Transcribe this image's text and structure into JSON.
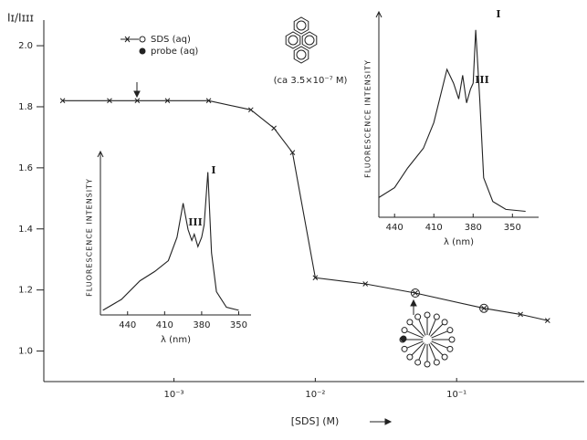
{
  "chart_data": [
    {
      "type": "line",
      "y_label": "Iɪ/Iɪɪɪ",
      "x_label": "[SDS] (M)",
      "log_x": true,
      "xlim": [
        0.00012,
        0.8
      ],
      "xticks": [
        {
          "value": 0.001,
          "label": "10⁻³"
        },
        {
          "value": 0.01,
          "label": "10⁻²"
        },
        {
          "value": 0.1,
          "label": "10⁻¹"
        }
      ],
      "ylim": [
        0.9,
        2.06
      ],
      "yticks": [
        {
          "value": 1,
          "label": "1.0"
        },
        1.2,
        1.4,
        1.6,
        1.8,
        {
          "value": 2,
          "label": "2.0"
        }
      ],
      "x": [
        0.000163,
        0.00035,
        0.00055,
        0.0009,
        0.00176,
        0.0035,
        0.0051,
        0.0069,
        0.01,
        0.0226,
        0.051,
        0.156,
        0.283,
        0.44
      ],
      "values": [
        1.82,
        1.82,
        1.82,
        1.82,
        1.82,
        1.79,
        1.73,
        1.65,
        1.24,
        1.22,
        1.19,
        1.14,
        1.12,
        1.1
      ],
      "circled": [
        false,
        false,
        false,
        false,
        false,
        false,
        false,
        false,
        false,
        false,
        true,
        true,
        false,
        false
      ],
      "color": "#222",
      "annotations": [
        "SDS (aq)",
        "probe (aq)",
        "(ca 3.5×10⁻⁷ M)"
      ]
    },
    {
      "type": "line",
      "y_label": "FLUORESCENCE INTENSITY",
      "x_label": "λ (nm)",
      "xlim": [
        462,
        340
      ],
      "xticks": [
        440,
        410,
        380,
        350
      ],
      "ylim": [
        0,
        100
      ],
      "x": [
        460,
        445,
        430,
        418,
        407,
        400,
        395,
        391,
        388,
        386,
        383,
        380,
        378,
        375,
        372,
        368,
        360,
        350
      ],
      "values": [
        3,
        10,
        22,
        28,
        35,
        50,
        72,
        55,
        48,
        52,
        44,
        50,
        58,
        92,
        40,
        15,
        5,
        3
      ],
      "color": "#222",
      "peak_labels": [
        "III",
        "I"
      ]
    },
    {
      "type": "line",
      "y_label": "FLUORESCENCE INTENSITY",
      "x_label": "λ (nm)",
      "xlim": [
        452,
        330
      ],
      "xticks": [
        440,
        410,
        380,
        350
      ],
      "ylim": [
        0,
        100
      ],
      "x": [
        452,
        440,
        430,
        418,
        410,
        400,
        395,
        391,
        388,
        385,
        382,
        380,
        378,
        375,
        372,
        365,
        355,
        340
      ],
      "values": [
        10,
        15,
        25,
        35,
        48,
        75,
        68,
        60,
        72,
        58,
        65,
        68,
        95,
        60,
        20,
        8,
        4,
        3
      ],
      "color": "#222",
      "peak_labels": [
        "III",
        "I"
      ]
    }
  ]
}
